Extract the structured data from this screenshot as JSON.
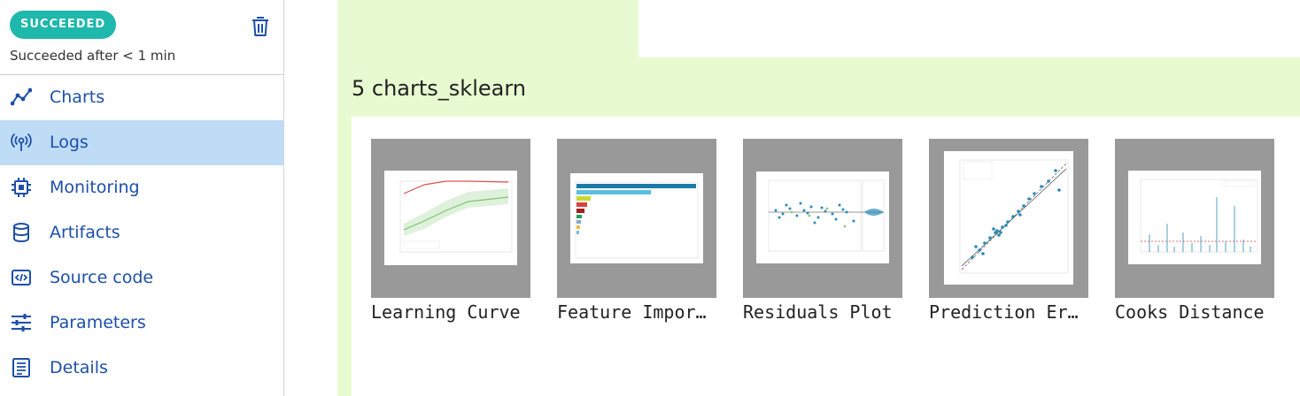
{
  "status": {
    "badge": "SUCCEEDED",
    "text": "Succeeded after < 1 min"
  },
  "nav": {
    "items": [
      {
        "label": "Charts",
        "icon": "chart-line-icon"
      },
      {
        "label": "Logs",
        "icon": "broadcast-icon",
        "active": true
      },
      {
        "label": "Monitoring",
        "icon": "chip-icon"
      },
      {
        "label": "Artifacts",
        "icon": "database-icon"
      },
      {
        "label": "Source code",
        "icon": "code-icon"
      },
      {
        "label": "Parameters",
        "icon": "sliders-icon"
      },
      {
        "label": "Details",
        "icon": "document-icon"
      }
    ]
  },
  "main": {
    "section_title": "5  charts_sklearn",
    "charts": [
      {
        "caption": "Learning Curve"
      },
      {
        "caption": "Feature Importances"
      },
      {
        "caption": "Residuals Plot"
      },
      {
        "caption": "Prediction Error"
      },
      {
        "caption": "Cooks Distance"
      }
    ]
  },
  "colors": {
    "accent": "#1fb8ad",
    "nav_text": "#1d4fa8",
    "active_bg": "#bfdcf7",
    "cell_bg": "#e8fbd0"
  }
}
